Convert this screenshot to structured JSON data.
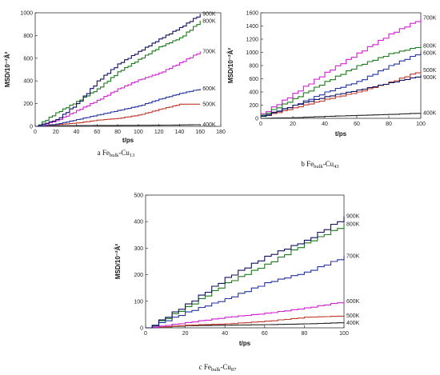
{
  "figure": {
    "panels": [
      {
        "caption_prefix": "a",
        "caption_main": "Fe",
        "caption_sub": "bulk",
        "caption_suffix": "-Cu",
        "caption_suffix_sub": "13"
      },
      {
        "caption_prefix": "b",
        "caption_main": "Fe",
        "caption_sub": "bulk",
        "caption_suffix": "-Cu",
        "caption_suffix_sub": "43"
      },
      {
        "caption_prefix": "c",
        "caption_main": "Fe",
        "caption_sub": "bulk",
        "caption_suffix": "-Cu",
        "caption_suffix_sub": "87"
      }
    ]
  },
  "chart_data": [
    {
      "type": "line",
      "xlabel": "t/ps",
      "ylabel": "MSD/10⁻²Å²",
      "xlim": [
        0,
        180
      ],
      "ylim": [
        0,
        1000
      ],
      "xticks": [
        0,
        20,
        40,
        60,
        80,
        100,
        120,
        140,
        160,
        180
      ],
      "yticks": [
        0,
        200,
        400,
        600,
        800,
        1000
      ],
      "series": [
        {
          "name": "400K",
          "color": "#222222",
          "points": [
            [
              0,
              0
            ],
            [
              20,
              5
            ],
            [
              40,
              6
            ],
            [
              60,
              8
            ],
            [
              80,
              8
            ],
            [
              100,
              9
            ],
            [
              120,
              10
            ],
            [
              140,
              12
            ],
            [
              160,
              15
            ]
          ]
        },
        {
          "name": "500K",
          "color": "#c0392b",
          "points": [
            [
              0,
              0
            ],
            [
              20,
              15
            ],
            [
              40,
              30
            ],
            [
              60,
              55
            ],
            [
              80,
              70
            ],
            [
              100,
              100
            ],
            [
              120,
              150
            ],
            [
              140,
              195
            ],
            [
              160,
              195
            ]
          ]
        },
        {
          "name": "600K",
          "color": "#2233a0",
          "points": [
            [
              0,
              0
            ],
            [
              20,
              20
            ],
            [
              40,
              60
            ],
            [
              60,
              100
            ],
            [
              80,
              140
            ],
            [
              100,
              180
            ],
            [
              120,
              240
            ],
            [
              140,
              290
            ],
            [
              160,
              330
            ]
          ]
        },
        {
          "name": "700K",
          "color": "#d020d0",
          "points": [
            [
              0,
              0
            ],
            [
              20,
              50
            ],
            [
              40,
              140
            ],
            [
              60,
              230
            ],
            [
              80,
              330
            ],
            [
              100,
              410
            ],
            [
              120,
              470
            ],
            [
              140,
              560
            ],
            [
              160,
              660
            ]
          ]
        },
        {
          "name": "800K",
          "color": "#1a7a1a",
          "points": [
            [
              0,
              0
            ],
            [
              20,
              120
            ],
            [
              40,
              220
            ],
            [
              60,
              330
            ],
            [
              80,
              480
            ],
            [
              100,
              590
            ],
            [
              120,
              700
            ],
            [
              140,
              780
            ],
            [
              160,
              930
            ]
          ]
        },
        {
          "name": "900K",
          "color": "#101060",
          "points": [
            [
              0,
              0
            ],
            [
              20,
              60
            ],
            [
              40,
              200
            ],
            [
              60,
              400
            ],
            [
              80,
              550
            ],
            [
              100,
              660
            ],
            [
              120,
              770
            ],
            [
              140,
              870
            ],
            [
              160,
              990
            ]
          ]
        }
      ]
    },
    {
      "type": "line",
      "xlabel": "t/ps",
      "ylabel": "MSD/10⁻²Å²",
      "xlim": [
        0,
        100
      ],
      "ylim": [
        0,
        1600
      ],
      "xticks": [
        0,
        20,
        40,
        60,
        80,
        100
      ],
      "yticks": [
        0,
        200,
        400,
        600,
        800,
        1000,
        1200,
        1400,
        1600
      ],
      "series": [
        {
          "name": "400K",
          "color": "#222222",
          "points": [
            [
              0,
              0
            ],
            [
              20,
              10
            ],
            [
              40,
              30
            ],
            [
              60,
              45
            ],
            [
              80,
              60
            ],
            [
              100,
              80
            ]
          ]
        },
        {
          "name": "500K",
          "color": "#c0392b",
          "points": [
            [
              0,
              30
            ],
            [
              20,
              160
            ],
            [
              40,
              290
            ],
            [
              60,
              400
            ],
            [
              80,
              550
            ],
            [
              100,
              730
            ]
          ]
        },
        {
          "name": "600K",
          "color": "#2233a0",
          "points": [
            [
              0,
              40
            ],
            [
              20,
              200
            ],
            [
              40,
              400
            ],
            [
              60,
              560
            ],
            [
              80,
              800
            ],
            [
              100,
              1010
            ]
          ]
        },
        {
          "name": "700K",
          "color": "#d020d0",
          "points": [
            [
              0,
              70
            ],
            [
              20,
              380
            ],
            [
              40,
              700
            ],
            [
              60,
              990
            ],
            [
              80,
              1280
            ],
            [
              100,
              1520
            ]
          ]
        },
        {
          "name": "800K",
          "color": "#1a7a1a",
          "points": [
            [
              0,
              50
            ],
            [
              20,
              300
            ],
            [
              40,
              560
            ],
            [
              60,
              800
            ],
            [
              80,
              980
            ],
            [
              100,
              1100
            ]
          ]
        },
        {
          "name": "900K",
          "color": "#101060",
          "points": [
            [
              0,
              30
            ],
            [
              20,
              200
            ],
            [
              40,
              330
            ],
            [
              60,
              430
            ],
            [
              80,
              540
            ],
            [
              100,
              650
            ]
          ]
        }
      ]
    },
    {
      "type": "line",
      "xlabel": "t/ps",
      "ylabel": "MSD/10⁻²Å²",
      "xlim": [
        0,
        100
      ],
      "ylim": [
        0,
        500
      ],
      "xticks": [
        0,
        20,
        40,
        60,
        80,
        100
      ],
      "yticks": [
        0,
        100,
        200,
        300,
        400,
        500
      ],
      "series": [
        {
          "name": "400K",
          "color": "#222222",
          "points": [
            [
              0,
              0
            ],
            [
              20,
              8
            ],
            [
              40,
              10
            ],
            [
              60,
              12
            ],
            [
              80,
              15
            ],
            [
              100,
              20
            ]
          ]
        },
        {
          "name": "500K",
          "color": "#c0392b",
          "points": [
            [
              0,
              0
            ],
            [
              20,
              10
            ],
            [
              40,
              15
            ],
            [
              60,
              25
            ],
            [
              80,
              40
            ],
            [
              100,
              45
            ]
          ]
        },
        {
          "name": "600K",
          "color": "#d020d0",
          "points": [
            [
              0,
              0
            ],
            [
              20,
              20
            ],
            [
              40,
              40
            ],
            [
              60,
              55
            ],
            [
              80,
              75
            ],
            [
              100,
              100
            ]
          ]
        },
        {
          "name": "700K",
          "color": "#2233a0",
          "points": [
            [
              0,
              0
            ],
            [
              20,
              60
            ],
            [
              40,
              110
            ],
            [
              60,
              170
            ],
            [
              80,
              210
            ],
            [
              100,
              270
            ]
          ]
        },
        {
          "name": "800K",
          "color": "#1a7a1a",
          "points": [
            [
              0,
              0
            ],
            [
              20,
              80
            ],
            [
              40,
              170
            ],
            [
              60,
              240
            ],
            [
              80,
              320
            ],
            [
              100,
              390
            ]
          ]
        },
        {
          "name": "900K",
          "color": "#101060",
          "points": [
            [
              0,
              0
            ],
            [
              20,
              90
            ],
            [
              40,
              190
            ],
            [
              60,
              270
            ],
            [
              80,
              330
            ],
            [
              100,
              420
            ]
          ]
        }
      ]
    }
  ]
}
